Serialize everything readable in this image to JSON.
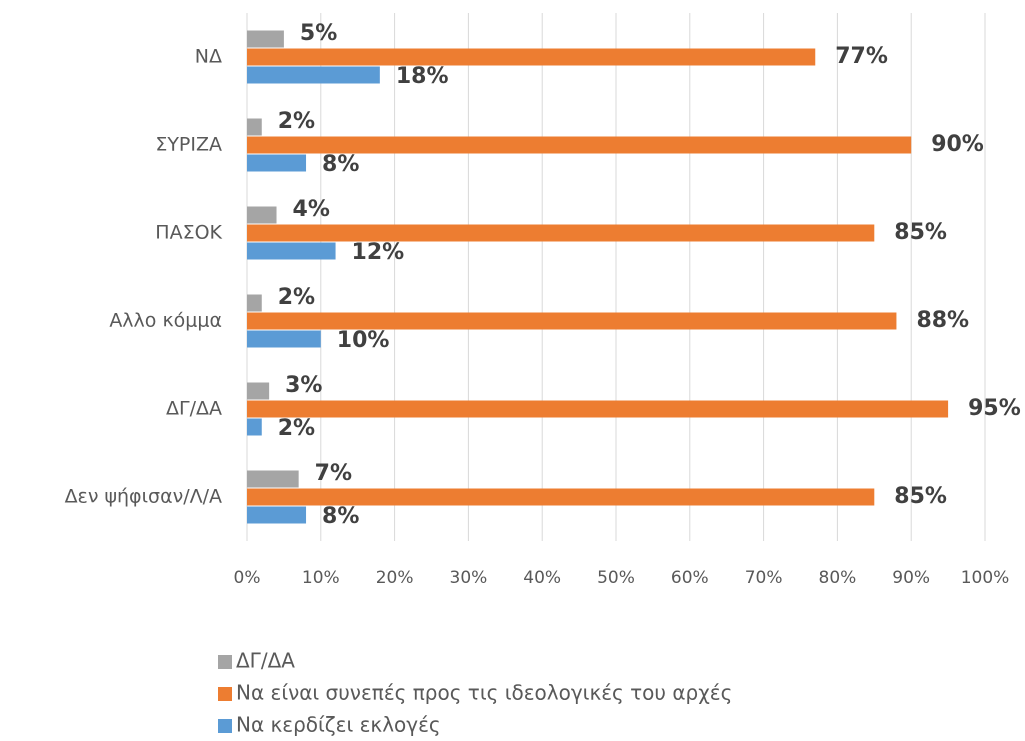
{
  "chart_data": {
    "type": "hbar",
    "categories": [
      "ΝΔ",
      "ΣΥΡΙΖΑ",
      "ΠΑΣΟΚ",
      "Αλλο κόμμα",
      "ΔΓ/ΔΑ",
      "Δεν ψήφισαν/Λ/Α"
    ],
    "series": [
      {
        "name": "ΔΓ/ΔΑ",
        "color": "#a5a5a5",
        "values": [
          5,
          2,
          4,
          2,
          3,
          7
        ],
        "value_labels": [
          "5%",
          "2%",
          "4%",
          "2%",
          "3%",
          "7%"
        ]
      },
      {
        "name": "Να είναι συνεπές προς τις ιδεολογικές του αρχές",
        "color": "#ed7d31",
        "values": [
          77,
          90,
          85,
          88,
          95,
          85
        ],
        "value_labels": [
          "77%",
          "90%",
          "85%",
          "88%",
          "95%",
          "85%"
        ]
      },
      {
        "name": "Να κερδίζει εκλογές",
        "color": "#5b9bd5",
        "values": [
          18,
          8,
          12,
          10,
          2,
          8
        ],
        "value_labels": [
          "18%",
          "8%",
          "12%",
          "10%",
          "2%",
          "8%"
        ]
      }
    ],
    "xlim": [
      0,
      100
    ],
    "xticks": [
      {
        "value": 0,
        "label": "0%"
      },
      {
        "value": 10,
        "label": "10%"
      },
      {
        "value": 20,
        "label": "20%"
      },
      {
        "value": 30,
        "label": "30%"
      },
      {
        "value": 40,
        "label": "40%"
      },
      {
        "value": 50,
        "label": "50%"
      },
      {
        "value": 60,
        "label": "60%"
      },
      {
        "value": 70,
        "label": "70%"
      },
      {
        "value": 80,
        "label": "80%"
      },
      {
        "value": 90,
        "label": "90%"
      },
      {
        "value": 100,
        "label": "100%"
      }
    ],
    "grid": true,
    "legend": "bottom"
  }
}
